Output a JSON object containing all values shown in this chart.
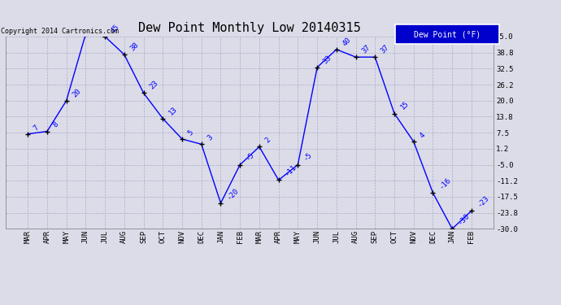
{
  "title": "Dew Point Monthly Low 20140315",
  "copyright": "Copyright 2014 Cartronics.com",
  "legend_label": "Dew Point (°F)",
  "months": [
    "MAR",
    "APR",
    "MAY",
    "JUN",
    "JUL",
    "AUG",
    "SEP",
    "OCT",
    "NOV",
    "DEC",
    "JAN",
    "FEB",
    "MAR",
    "APR",
    "MAY",
    "JUN",
    "JUL",
    "AUG",
    "SEP",
    "OCT",
    "NOV",
    "DEC",
    "JAN",
    "FEB"
  ],
  "values": [
    7,
    8,
    20,
    46,
    45,
    38,
    23,
    13,
    5,
    3,
    -20,
    -5,
    2,
    -11,
    -5,
    33,
    40,
    37,
    37,
    15,
    4,
    -16,
    -30,
    -23
  ],
  "ylim": [
    -30.0,
    45.0
  ],
  "yticks": [
    45.0,
    38.8,
    32.5,
    26.2,
    20.0,
    13.8,
    7.5,
    1.2,
    -5.0,
    -11.2,
    -17.5,
    -23.8,
    -30.0
  ],
  "line_color": "blue",
  "marker_color": "black",
  "bg_color": "#dcdce8",
  "grid_color": "#aaaacc",
  "title_fontsize": 11,
  "label_fontsize": 6.5,
  "tick_fontsize": 6.5,
  "legend_bg": "#0000cc",
  "legend_text_color": "white"
}
